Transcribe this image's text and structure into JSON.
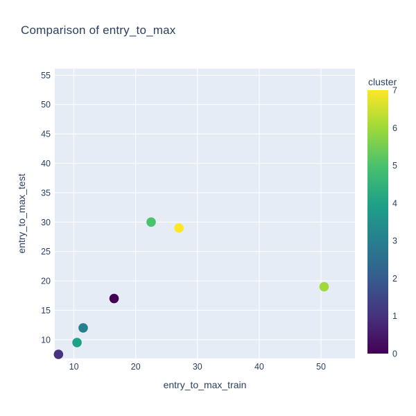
{
  "chart_data": {
    "type": "scatter",
    "title": "Comparison of entry_to_max",
    "xlabel": "entry_to_max_train",
    "ylabel": "entry_to_max_test",
    "xlim": [
      6.9,
      55.5
    ],
    "ylim": [
      6.8,
      56.1
    ],
    "xticks": [
      10,
      20,
      30,
      40,
      50
    ],
    "yticks": [
      10,
      15,
      20,
      25,
      30,
      35,
      40,
      45,
      50,
      55
    ],
    "grid": true,
    "marker_radius": 6.8,
    "points": [
      {
        "x": 7.5,
        "y": 7.5,
        "cluster": 1
      },
      {
        "x": 10.5,
        "y": 9.5,
        "cluster": 4
      },
      {
        "x": 11.5,
        "y": 12,
        "cluster": 3
      },
      {
        "x": 16.5,
        "y": 17,
        "cluster": 0
      },
      {
        "x": 22.5,
        "y": 30,
        "cluster": 5
      },
      {
        "x": 27,
        "y": 29,
        "cluster": 7
      },
      {
        "x": 50.5,
        "y": 19,
        "cluster": 6
      }
    ],
    "colorbar": {
      "title": "cluster",
      "min": 0,
      "max": 7,
      "ticks": [
        0,
        1,
        2,
        3,
        4,
        5,
        6,
        7
      ]
    },
    "colorscale": [
      {
        "t": 0.0,
        "color": "#440154"
      },
      {
        "t": 0.143,
        "color": "#46327e"
      },
      {
        "t": 0.286,
        "color": "#365c8d"
      },
      {
        "t": 0.429,
        "color": "#277f8e"
      },
      {
        "t": 0.571,
        "color": "#1fa187"
      },
      {
        "t": 0.714,
        "color": "#4ac16d"
      },
      {
        "t": 0.857,
        "color": "#9fd93a"
      },
      {
        "t": 1.0,
        "color": "#fde725"
      }
    ],
    "colors": {
      "paper_background": "#ffffff",
      "plot_background": "#e5ecf6",
      "grid": "#ffffff",
      "font": "#2a3f5f"
    }
  }
}
